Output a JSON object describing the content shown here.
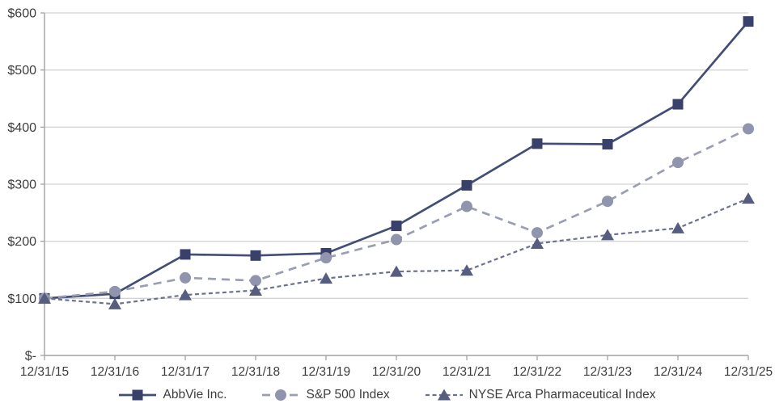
{
  "chart_data": {
    "type": "line",
    "title": "",
    "xlabel": "",
    "ylabel": "",
    "ylim": [
      0,
      600
    ],
    "y_tick_step": 100,
    "y_tick_labels": [
      "$-",
      "$100",
      "$200",
      "$300",
      "$400",
      "$500",
      "$600"
    ],
    "grid": "horizontal",
    "legend_position": "bottom",
    "categories": [
      "12/31/15",
      "12/31/16",
      "12/31/17",
      "12/31/18",
      "12/31/19",
      "12/31/20",
      "12/31/21",
      "12/31/22",
      "12/31/23",
      "12/31/24",
      "12/31/25"
    ],
    "series": [
      {
        "name": "AbbVie Inc.",
        "marker": "square",
        "line_style": "solid",
        "marker_color": "#39406a",
        "line_color": "#434e76",
        "values": [
          100,
          108,
          177,
          175,
          179,
          227,
          298,
          371,
          370,
          440,
          585
        ]
      },
      {
        "name": "S&P 500 Index",
        "marker": "circle",
        "line_style": "dashed",
        "marker_color": "#9094ac",
        "line_color": "#9a9eb4",
        "values": [
          100,
          112,
          136,
          131,
          171,
          203,
          261,
          215,
          270,
          338,
          397
        ]
      },
      {
        "name": "NYSE Arca Pharmaceutical Index",
        "marker": "triangle",
        "line_style": "short-dash",
        "marker_color": "#575d7e",
        "line_color": "#6b7190",
        "values": [
          100,
          90,
          106,
          114,
          135,
          147,
          149,
          196,
          211,
          223,
          275
        ]
      }
    ]
  },
  "colors": {
    "gridline": "#d4d4d4",
    "axis": "#a3a3a3",
    "tick_text": "#3d3d3d",
    "background": "#ffffff"
  }
}
